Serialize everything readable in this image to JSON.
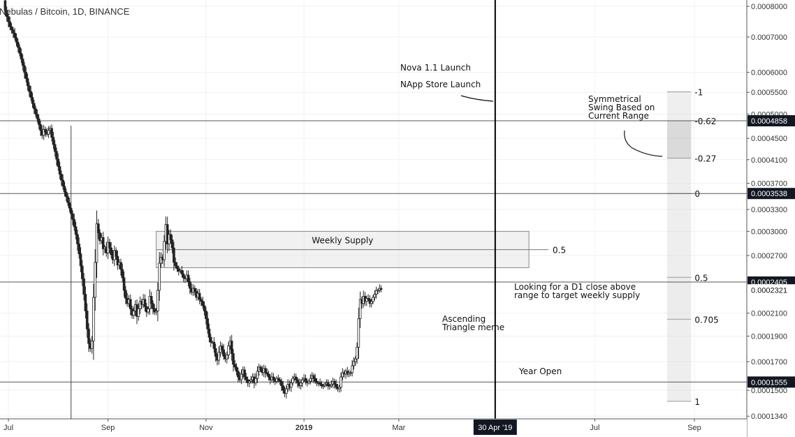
{
  "chart_data": {
    "type": "candlestick",
    "title": "Nebulas / Bitcoin, 1D, BINANCE",
    "y_scale": "log",
    "ylim": [
      0.00013,
      0.0008
    ],
    "x_range": [
      "2018-06-29",
      "2019-09-20"
    ],
    "x_ticks": [
      {
        "date": "2018-07-01",
        "label": "Jul",
        "bold": false
      },
      {
        "date": "2018-09-01",
        "label": "Sep",
        "bold": false
      },
      {
        "date": "2018-11-01",
        "label": "Nov",
        "bold": false
      },
      {
        "date": "2019-01-01",
        "label": "2019",
        "bold": true
      },
      {
        "date": "2019-03-01",
        "label": "Mar",
        "bold": false
      },
      {
        "date": "2019-07-01",
        "label": "Jul",
        "bold": false
      },
      {
        "date": "2019-09-01",
        "label": "Sep",
        "bold": false
      }
    ],
    "y_ticks": [
      {
        "value": 0.0008,
        "label": "0.0008000"
      },
      {
        "value": 0.0007,
        "label": "0.0007000"
      },
      {
        "value": 0.0006,
        "label": "0.0006000"
      },
      {
        "value": 0.00055,
        "label": "0.0005500"
      },
      {
        "value": 0.0005,
        "label": "0.0005000"
      },
      {
        "value": 0.00045,
        "label": "0.0004500"
      },
      {
        "value": 0.00041,
        "label": "0.0004100"
      },
      {
        "value": 0.00037,
        "label": "0.0003700"
      },
      {
        "value": 0.00033,
        "label": "0.0003300"
      },
      {
        "value": 0.0003,
        "label": "0.0003000"
      },
      {
        "value": 0.00027,
        "label": "0.0002700"
      },
      {
        "value": 0.00021,
        "label": "0.0002100"
      },
      {
        "value": 0.00019,
        "label": "0.0001900"
      },
      {
        "value": 0.00017,
        "label": "0.0001700"
      },
      {
        "value": 0.00015,
        "label": "0.0001500"
      },
      {
        "value": 0.000134,
        "label": "0.0001340"
      }
    ],
    "price_tags": [
      {
        "value": 0.0004858,
        "label": "0.0004858",
        "style": "dark"
      },
      {
        "value": 0.0003538,
        "label": "0.0003538",
        "style": "dark"
      },
      {
        "value": 0.0002405,
        "label": "0.0002405",
        "style": "dark"
      },
      {
        "value": 0.0002321,
        "label": "0.0002321",
        "style": "light"
      },
      {
        "value": 0.0001555,
        "label": "0.0001555",
        "style": "dark"
      }
    ],
    "horizontal_lines": [
      0.0004858,
      0.0003538,
      0.0002405,
      0.0001555
    ],
    "event_line": {
      "date": "2019-04-30",
      "label": "30 Apr '19"
    },
    "early_vertical_line": {
      "date": "2018-08-09"
    },
    "weekly_supply_zone": {
      "label": "Weekly Supply",
      "level_label": "0.5",
      "top": 0.0003,
      "bottom": 0.000256,
      "mid": 0.000277,
      "start": "2018-10-01",
      "end": "2019-05-21"
    },
    "fib_tool": {
      "start": "2019-08-15",
      "end": "2019-08-30",
      "levels": [
        {
          "ratio": "-1",
          "value": 0.000551
        },
        {
          "ratio": "-0.62",
          "value": 0.0004858
        },
        {
          "ratio": "-0.27",
          "value": 0.0004128
        },
        {
          "ratio": "0",
          "value": 0.0003538
        },
        {
          "ratio": "0.5",
          "value": 0.0002455
        },
        {
          "ratio": "0.705",
          "value": 0.0002045
        },
        {
          "ratio": "1",
          "value": 0.000143
        }
      ]
    },
    "annotations": [
      {
        "text": "Nova 1.1 Launch"
      },
      {
        "text": "NApp Store Launch"
      },
      {
        "text": "Symmetrical"
      },
      {
        "text": "Swing Based on"
      },
      {
        "text": "Current Range"
      },
      {
        "text": "Looking for a D1 close above"
      },
      {
        "text": "range to target weekly supply"
      },
      {
        "text": "Ascending"
      },
      {
        "text": "Triangle meme"
      },
      {
        "text": "Year Open"
      }
    ],
    "series": [
      {
        "type": "ohlc_daily",
        "start_date": "2018-06-28",
        "closes": [
          0.00082,
          0.000785,
          0.000765,
          0.000748,
          0.000732,
          0.000722,
          0.000712,
          0.000698,
          0.000684,
          0.000669,
          0.000652,
          0.000636,
          0.000618,
          0.0006,
          0.000584,
          0.000566,
          0.000552,
          0.000538,
          0.000524,
          0.000512,
          0.0005,
          0.00049,
          0.000478,
          0.000466,
          0.000456,
          0.000468,
          0.000462,
          0.000458,
          0.000466,
          0.00047,
          0.000452,
          0.000438,
          0.000425,
          0.000411,
          0.000398,
          0.000385,
          0.000375,
          0.000365,
          0.000356,
          0.000349,
          0.00034,
          0.000332,
          0.000324,
          0.000316,
          0.000306,
          0.000296,
          0.000284,
          0.000272,
          0.000258,
          0.000244,
          0.000228,
          0.000212,
          0.000196,
          0.000184,
          0.00018,
          0.000186,
          0.000225,
          0.000262,
          0.00031,
          0.000298,
          0.000288,
          0.000292,
          0.000278,
          0.00028,
          0.000273,
          0.000286,
          0.000279,
          0.000271,
          0.000265,
          0.000276,
          0.000269,
          0.000259,
          0.000262,
          0.000254,
          0.000245,
          0.000232,
          0.000224,
          0.000219,
          0.000223,
          0.000214,
          0.000208,
          0.000212,
          0.000218,
          0.000207,
          0.000214,
          0.000221,
          0.000218,
          0.000223,
          0.000216,
          0.000211,
          0.000214,
          0.000226,
          0.000219,
          0.000214,
          0.000211,
          0.000212,
          0.000232,
          0.000261,
          0.000268,
          0.000265,
          0.000287,
          0.000309,
          0.000284,
          0.000296,
          0.000289,
          0.000279,
          0.000262,
          0.000258,
          0.000255,
          0.000252,
          0.000253,
          0.000249,
          0.000245,
          0.000244,
          0.000248,
          0.000241,
          0.000234,
          0.00023,
          0.000234,
          0.000231,
          0.000225,
          0.000229,
          0.000223,
          0.000221,
          0.000217,
          0.000212,
          0.000205,
          0.000196,
          0.000189,
          0.000185,
          0.000185,
          0.00018,
          0.000174,
          0.000171,
          0.000177,
          0.000182,
          0.000179,
          0.000174,
          0.000172,
          0.000175,
          0.000182,
          0.000186,
          0.000176,
          0.000168,
          0.000166,
          0.000163,
          0.000159,
          0.000157,
          0.000161,
          0.000164,
          0.000159,
          0.000157,
          0.000155,
          0.000156,
          0.000157,
          0.000159,
          0.000155,
          0.000158,
          0.000163,
          0.000166,
          0.000164,
          0.000162,
          0.000165,
          0.000162,
          0.000161,
          0.000159,
          0.000157,
          0.000159,
          0.000157,
          0.000156,
          0.000158,
          0.000157,
          0.000156,
          0.000153,
          0.00015,
          0.000148,
          0.000151,
          0.000154,
          0.000152,
          0.000155,
          0.000158,
          0.000159,
          0.000157,
          0.000155,
          0.000153,
          0.000155,
          0.000157,
          0.000158,
          0.000156,
          0.000155,
          0.000156,
          0.000158,
          0.00016,
          0.000158,
          0.000156,
          0.000155,
          0.000155,
          0.000154,
          0.000153,
          0.000153,
          0.000154,
          0.000155,
          0.000153,
          0.000153,
          0.000154,
          0.000156,
          0.000154,
          0.000152,
          0.000151,
          0.000152,
          0.000159,
          0.000162,
          0.000161,
          0.000163,
          0.000161,
          0.000162,
          0.000162,
          0.000167,
          0.00017,
          0.000172,
          0.000181,
          0.000205,
          0.000223,
          0.000219,
          0.000226,
          0.000221,
          0.000224,
          0.000223,
          0.000219,
          0.000221,
          0.000225,
          0.000228,
          0.000232,
          0.000232,
          0.000234,
          0.000233
        ]
      }
    ]
  }
}
